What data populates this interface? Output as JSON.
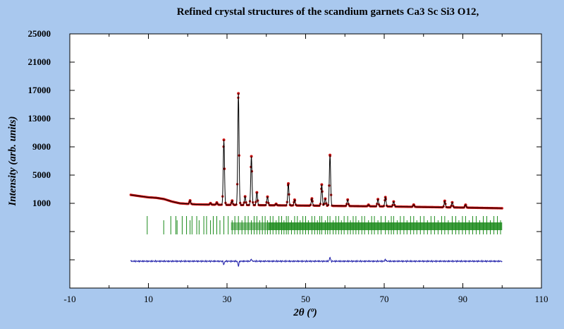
{
  "chart_data": {
    "type": "line",
    "title": "Refined crystal structures of the scandium garnets Ca3 Sc Si3 O12,",
    "xlabel": "2θ (º)",
    "ylabel": "Intensity (arb. units)",
    "xlim": [
      -10,
      110
    ],
    "ylim": [
      -11000,
      25000
    ],
    "x_ticks": [
      -10,
      10,
      30,
      50,
      70,
      90,
      110
    ],
    "y_ticks": [
      25000,
      21000,
      17000,
      13000,
      9000,
      5000,
      1000
    ],
    "grid": false,
    "colors": {
      "observed": "#cc1111",
      "calculated": "#000000",
      "difference": "#1a1aa8",
      "bragg": "#1a8a1a",
      "background": "#a9c8ee",
      "plot_area": "#ffffff"
    },
    "baseline_points": [
      [
        5.5,
        2200
      ],
      [
        8,
        2000
      ],
      [
        10,
        1850
      ],
      [
        12,
        1780
      ],
      [
        14,
        1600
      ],
      [
        16,
        1250
      ],
      [
        18,
        1000
      ],
      [
        22,
        850
      ],
      [
        30,
        780
      ],
      [
        50,
        680
      ],
      [
        70,
        560
      ],
      [
        90,
        400
      ],
      [
        100,
        300
      ]
    ],
    "peaks": [
      {
        "x": 20.6,
        "height": 500
      },
      {
        "x": 25.8,
        "height": 200
      },
      {
        "x": 27.4,
        "height": 300
      },
      {
        "x": 29.2,
        "height": 9200
      },
      {
        "x": 31.3,
        "height": 600
      },
      {
        "x": 32.9,
        "height": 15800
      },
      {
        "x": 34.6,
        "height": 1200
      },
      {
        "x": 36.2,
        "height": 6900
      },
      {
        "x": 37.6,
        "height": 1800
      },
      {
        "x": 40.3,
        "height": 1200
      },
      {
        "x": 42.5,
        "height": 200
      },
      {
        "x": 45.6,
        "height": 3100
      },
      {
        "x": 47.2,
        "height": 800
      },
      {
        "x": 51.6,
        "height": 1000
      },
      {
        "x": 54.1,
        "height": 3000
      },
      {
        "x": 55.0,
        "height": 1000
      },
      {
        "x": 56.2,
        "height": 7200
      },
      {
        "x": 60.7,
        "height": 900
      },
      {
        "x": 66.0,
        "height": 200
      },
      {
        "x": 68.4,
        "height": 1000
      },
      {
        "x": 70.3,
        "height": 1300
      },
      {
        "x": 72.4,
        "height": 700
      },
      {
        "x": 77.5,
        "height": 300
      },
      {
        "x": 85.4,
        "height": 900
      },
      {
        "x": 87.3,
        "height": 700
      },
      {
        "x": 90.7,
        "height": 400
      }
    ],
    "bragg_ticks": [
      9.7,
      13.9,
      15.7,
      17.0,
      17.3,
      18.6,
      19.7,
      20.6,
      21.1,
      22.3,
      22.9,
      24.1,
      24.8,
      25.8,
      26.5,
      27.4,
      28.2,
      29.2,
      30.3,
      31.3,
      32.0,
      32.9,
      33.8,
      34.6,
      35.4,
      36.2,
      36.9,
      37.6,
      38.3,
      39.0,
      39.7,
      40.3,
      41.0,
      41.7,
      42.5,
      43.2,
      43.9,
      44.5,
      45.1,
      45.6,
      46.4,
      47.2,
      47.9,
      48.6,
      49.3,
      50.0,
      50.7,
      51.6,
      52.3,
      53.0,
      53.6,
      54.1,
      55.0,
      55.6,
      56.2,
      57.0,
      57.7,
      58.4,
      59.1,
      59.8,
      60.7,
      61.4,
      62.1,
      62.8,
      63.5,
      64.3,
      65.0,
      66.0,
      66.8,
      67.5,
      68.4,
      69.2,
      70.3,
      71.1,
      71.8,
      72.4,
      73.3,
      74.1,
      75.0,
      75.8,
      76.7,
      77.5,
      78.3,
      79.2,
      80.1,
      81.0,
      81.9,
      82.8,
      83.7,
      84.6,
      85.4,
      86.3,
      87.3,
      88.2,
      89.0,
      89.9,
      90.7,
      91.6,
      92.5,
      93.4,
      94.3,
      95.2,
      96.1,
      97.0,
      97.9,
      98.8,
      99.6
    ],
    "bragg_band": {
      "y_top": -800,
      "y_bottom": -3400
    },
    "difference_offset": -7200,
    "difference_spikes": [
      {
        "x": 29.2,
        "value": -500
      },
      {
        "x": 32.9,
        "value": -700
      },
      {
        "x": 36.2,
        "value": 300
      },
      {
        "x": 56.2,
        "value": 600
      },
      {
        "x": 70.3,
        "value": 250
      }
    ]
  }
}
